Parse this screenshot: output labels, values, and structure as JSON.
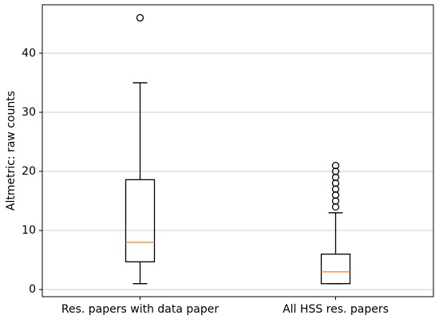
{
  "chart_data": {
    "type": "box",
    "y_label": "Altmetric: raw counts",
    "categories": [
      "Res. papers with data paper",
      "All HSS res. papers"
    ],
    "boxes": [
      {
        "whislo": 1,
        "q1": 4.7,
        "med": 8,
        "q3": 18.6,
        "whishi": 35,
        "fliers": [
          46
        ]
      },
      {
        "whislo": 1,
        "q1": 1,
        "med": 3,
        "q3": 6,
        "whishi": 13,
        "fliers": [
          14,
          15,
          16,
          17,
          18,
          19,
          20,
          21
        ]
      }
    ],
    "box_color": "#000000",
    "median_color": "#ff7f0e",
    "ylim": [
      -1.2,
      48.2
    ],
    "yticks": [
      0,
      10,
      20,
      30,
      40
    ],
    "grid": true
  }
}
